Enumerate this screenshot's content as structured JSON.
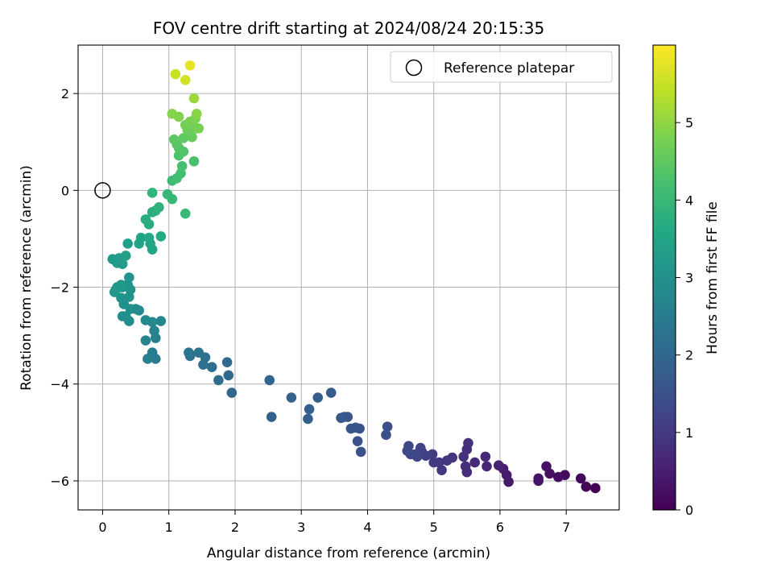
{
  "chart_data": {
    "type": "scatter",
    "title": "FOV centre drift starting at 2024/08/24 20:15:35",
    "xlabel": "Angular distance from reference (arcmin)",
    "ylabel": "Rotation from reference (arcmin)",
    "xlim": [
      -0.37,
      7.8
    ],
    "ylim": [
      -6.6,
      3.0
    ],
    "xticks": [
      0,
      1,
      2,
      3,
      4,
      5,
      6,
      7
    ],
    "yticks": [
      -6,
      -4,
      -2,
      0,
      2
    ],
    "grid": true,
    "legend": {
      "position": "top-right",
      "entries": [
        "Reference platepar"
      ]
    },
    "reference_point": {
      "x": 0,
      "y": 0
    },
    "colorbar": {
      "label": "Hours from first FF file",
      "colormap": "viridis",
      "range": [
        0,
        6.0
      ],
      "ticks": [
        0,
        1,
        2,
        3,
        4,
        5
      ]
    },
    "series": [
      {
        "color_by": "hours",
        "points": [
          [
            7.44,
            -6.15,
            0.02
          ],
          [
            7.3,
            -6.12,
            0.06
          ],
          [
            7.22,
            -5.95,
            0.1
          ],
          [
            6.98,
            -5.88,
            0.16
          ],
          [
            6.88,
            -5.92,
            0.2
          ],
          [
            6.75,
            -5.85,
            0.24
          ],
          [
            6.7,
            -5.7,
            0.28
          ],
          [
            6.58,
            -5.95,
            0.32
          ],
          [
            6.58,
            -6.0,
            0.34
          ],
          [
            6.13,
            -6.02,
            0.42
          ],
          [
            6.1,
            -5.88,
            0.46
          ],
          [
            6.05,
            -5.75,
            0.5
          ],
          [
            5.98,
            -5.68,
            0.56
          ],
          [
            5.8,
            -5.7,
            0.62
          ],
          [
            5.78,
            -5.5,
            0.66
          ],
          [
            5.62,
            -5.62,
            0.72
          ],
          [
            5.5,
            -5.82,
            0.76
          ],
          [
            5.48,
            -5.7,
            0.78
          ],
          [
            5.52,
            -5.22,
            0.8
          ],
          [
            5.5,
            -5.35,
            0.82
          ],
          [
            5.45,
            -5.5,
            0.86
          ],
          [
            5.28,
            -5.52,
            0.9
          ],
          [
            5.2,
            -5.58,
            0.94
          ],
          [
            5.12,
            -5.78,
            0.98
          ],
          [
            5.08,
            -5.62,
            1.0
          ],
          [
            5.0,
            -5.62,
            1.02
          ],
          [
            4.98,
            -5.45,
            1.06
          ],
          [
            4.88,
            -5.48,
            1.1
          ],
          [
            4.82,
            -5.4,
            1.14
          ],
          [
            4.8,
            -5.32,
            1.18
          ],
          [
            4.75,
            -5.5,
            1.22
          ],
          [
            4.72,
            -5.45,
            1.24
          ],
          [
            4.65,
            -5.45,
            1.26
          ],
          [
            4.62,
            -5.28,
            1.28
          ],
          [
            4.6,
            -5.38,
            1.3
          ],
          [
            4.3,
            -4.88,
            1.4
          ],
          [
            4.28,
            -5.05,
            1.44
          ],
          [
            3.9,
            -5.4,
            1.5
          ],
          [
            3.85,
            -5.18,
            1.52
          ],
          [
            3.88,
            -4.92,
            1.56
          ],
          [
            3.82,
            -4.9,
            1.58
          ],
          [
            3.75,
            -4.92,
            1.6
          ],
          [
            3.7,
            -4.68,
            1.62
          ],
          [
            3.65,
            -4.68,
            1.64
          ],
          [
            3.6,
            -4.7,
            1.66
          ],
          [
            3.45,
            -4.18,
            1.74
          ],
          [
            3.25,
            -4.28,
            1.78
          ],
          [
            3.12,
            -4.52,
            1.8
          ],
          [
            3.1,
            -4.72,
            1.82
          ],
          [
            2.85,
            -4.28,
            1.86
          ],
          [
            2.55,
            -4.68,
            1.9
          ],
          [
            2.52,
            -3.92,
            1.94
          ],
          [
            1.95,
            -4.18,
            2.0
          ],
          [
            1.9,
            -3.82,
            2.04
          ],
          [
            1.88,
            -3.55,
            2.08
          ],
          [
            1.75,
            -3.92,
            2.12
          ],
          [
            1.65,
            -3.65,
            2.16
          ],
          [
            1.55,
            -3.45,
            2.2
          ],
          [
            1.52,
            -3.6,
            2.24
          ],
          [
            1.45,
            -3.35,
            2.28
          ],
          [
            1.32,
            -3.42,
            2.3
          ],
          [
            1.3,
            -3.35,
            2.32
          ],
          [
            0.8,
            -3.48,
            2.5
          ],
          [
            0.75,
            -3.35,
            2.54
          ],
          [
            0.68,
            -3.48,
            2.58
          ],
          [
            0.8,
            -3.05,
            2.62
          ],
          [
            0.78,
            -2.9,
            2.66
          ],
          [
            0.65,
            -3.1,
            2.7
          ],
          [
            0.88,
            -2.7,
            2.74
          ],
          [
            0.75,
            -2.72,
            2.78
          ],
          [
            0.65,
            -2.68,
            2.82
          ],
          [
            0.55,
            -2.48,
            2.86
          ],
          [
            0.5,
            -2.45,
            2.88
          ],
          [
            0.4,
            -2.7,
            2.92
          ],
          [
            0.42,
            -2.45,
            2.94
          ],
          [
            0.35,
            -2.6,
            2.96
          ],
          [
            0.3,
            -2.6,
            2.98
          ],
          [
            0.32,
            -2.35,
            3.0
          ],
          [
            0.28,
            -2.22,
            3.02
          ],
          [
            0.4,
            -2.2,
            3.04
          ],
          [
            0.42,
            -2.05,
            3.06
          ],
          [
            0.38,
            -1.95,
            3.08
          ],
          [
            0.4,
            -1.8,
            3.1
          ],
          [
            0.3,
            -2.0,
            3.12
          ],
          [
            0.22,
            -2.0,
            3.14
          ],
          [
            0.18,
            -2.1,
            3.16
          ],
          [
            0.2,
            -2.05,
            3.18
          ],
          [
            0.28,
            -1.95,
            3.2
          ],
          [
            0.15,
            -1.42,
            3.26
          ],
          [
            0.22,
            -1.5,
            3.28
          ],
          [
            0.3,
            -1.52,
            3.3
          ],
          [
            0.25,
            -1.4,
            3.32
          ],
          [
            0.35,
            -1.35,
            3.36
          ],
          [
            0.38,
            -1.1,
            3.4
          ],
          [
            0.55,
            -1.1,
            3.44
          ],
          [
            0.58,
            -0.98,
            3.48
          ],
          [
            0.72,
            -1.1,
            3.52
          ],
          [
            0.75,
            -1.22,
            3.56
          ],
          [
            0.7,
            -0.98,
            3.6
          ],
          [
            0.88,
            -0.95,
            3.64
          ],
          [
            0.7,
            -0.7,
            3.68
          ],
          [
            0.65,
            -0.6,
            3.72
          ],
          [
            0.75,
            -0.45,
            3.76
          ],
          [
            0.8,
            -0.42,
            3.8
          ],
          [
            0.85,
            -0.35,
            3.84
          ],
          [
            0.75,
            -0.05,
            3.9
          ],
          [
            0.98,
            -0.08,
            3.96
          ],
          [
            1.05,
            -0.18,
            4.0
          ],
          [
            1.25,
            -0.48,
            4.02
          ],
          [
            1.05,
            0.2,
            4.1
          ],
          [
            1.12,
            0.25,
            4.14
          ],
          [
            1.18,
            0.35,
            4.18
          ],
          [
            1.2,
            0.5,
            4.22
          ],
          [
            1.38,
            0.6,
            4.26
          ],
          [
            1.15,
            0.72,
            4.3
          ],
          [
            1.22,
            0.8,
            4.34
          ],
          [
            1.15,
            0.88,
            4.38
          ],
          [
            1.12,
            0.95,
            4.42
          ],
          [
            1.08,
            1.05,
            4.46
          ],
          [
            1.22,
            1.08,
            4.5
          ],
          [
            1.3,
            1.15,
            4.54
          ],
          [
            1.35,
            1.1,
            4.58
          ],
          [
            1.28,
            1.25,
            4.62
          ],
          [
            1.42,
            1.28,
            4.66
          ],
          [
            1.25,
            1.35,
            4.7
          ],
          [
            1.32,
            1.42,
            4.74
          ],
          [
            1.45,
            1.28,
            4.78
          ],
          [
            1.4,
            1.48,
            4.82
          ],
          [
            1.15,
            1.52,
            4.86
          ],
          [
            1.05,
            1.58,
            4.9
          ],
          [
            1.42,
            1.58,
            4.94
          ],
          [
            1.38,
            1.9,
            5.1
          ],
          [
            1.1,
            2.4,
            5.5
          ],
          [
            1.25,
            2.28,
            5.6
          ],
          [
            1.32,
            2.58,
            5.8
          ]
        ]
      }
    ]
  }
}
